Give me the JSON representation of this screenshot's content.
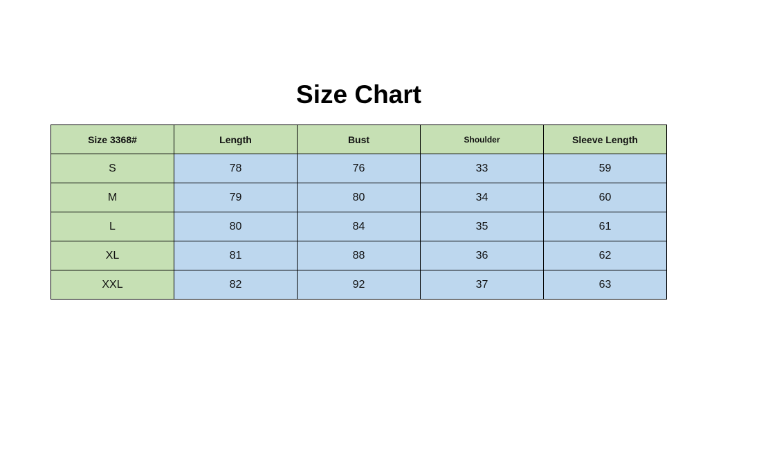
{
  "title": "Size Chart",
  "colors": {
    "header_bg": "#c6e0b4",
    "size_col_bg": "#c6e0b4",
    "value_bg": "#bdd7ee"
  },
  "chart_data": {
    "type": "table",
    "columns": [
      "Size 3368#",
      "Length",
      "Bust",
      "Shoulder",
      "Sleeve Length"
    ],
    "rows": [
      [
        "S",
        "78",
        "76",
        "33",
        "59"
      ],
      [
        "M",
        "79",
        "80",
        "34",
        "60"
      ],
      [
        "L",
        "80",
        "84",
        "35",
        "61"
      ],
      [
        "XL",
        "81",
        "88",
        "36",
        "62"
      ],
      [
        "XXL",
        "82",
        "92",
        "37",
        "63"
      ]
    ]
  }
}
